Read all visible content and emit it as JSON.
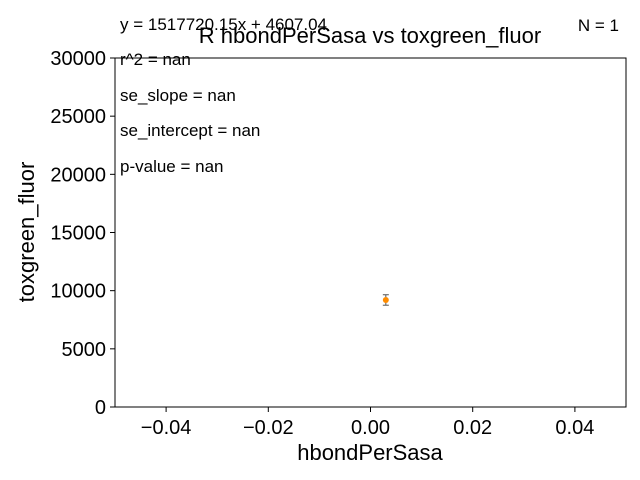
{
  "chart_data": {
    "type": "scatter",
    "title": "R hbondPerSasa vs toxgreen_fluor",
    "xlabel": "hbondPerSasa",
    "ylabel": "toxgreen_fluor",
    "xlim": [
      -0.05,
      0.05
    ],
    "ylim": [
      0,
      30000
    ],
    "xticks": [
      -0.04,
      -0.02,
      0.0,
      0.02,
      0.04
    ],
    "xtick_labels": [
      "−0.04",
      "−0.02",
      "0.00",
      "0.02",
      "0.04"
    ],
    "yticks": [
      0,
      5000,
      10000,
      15000,
      20000,
      25000,
      30000
    ],
    "ytick_labels": [
      "0",
      "5000",
      "10000",
      "15000",
      "20000",
      "25000",
      "30000"
    ],
    "grid": false,
    "points": [
      {
        "x": 0.003,
        "y": 9200,
        "yerr": 450
      }
    ],
    "point_color": "#ff8c00",
    "errorbar_color": "#555555",
    "annotations": {
      "equation": "y = 1517720.15x + 4607.04",
      "n": "N = 1",
      "r2": "r^2 = nan",
      "se_slope": "se_slope = nan",
      "se_intercept": "se_intercept = nan",
      "p_value": "p-value = nan"
    }
  }
}
